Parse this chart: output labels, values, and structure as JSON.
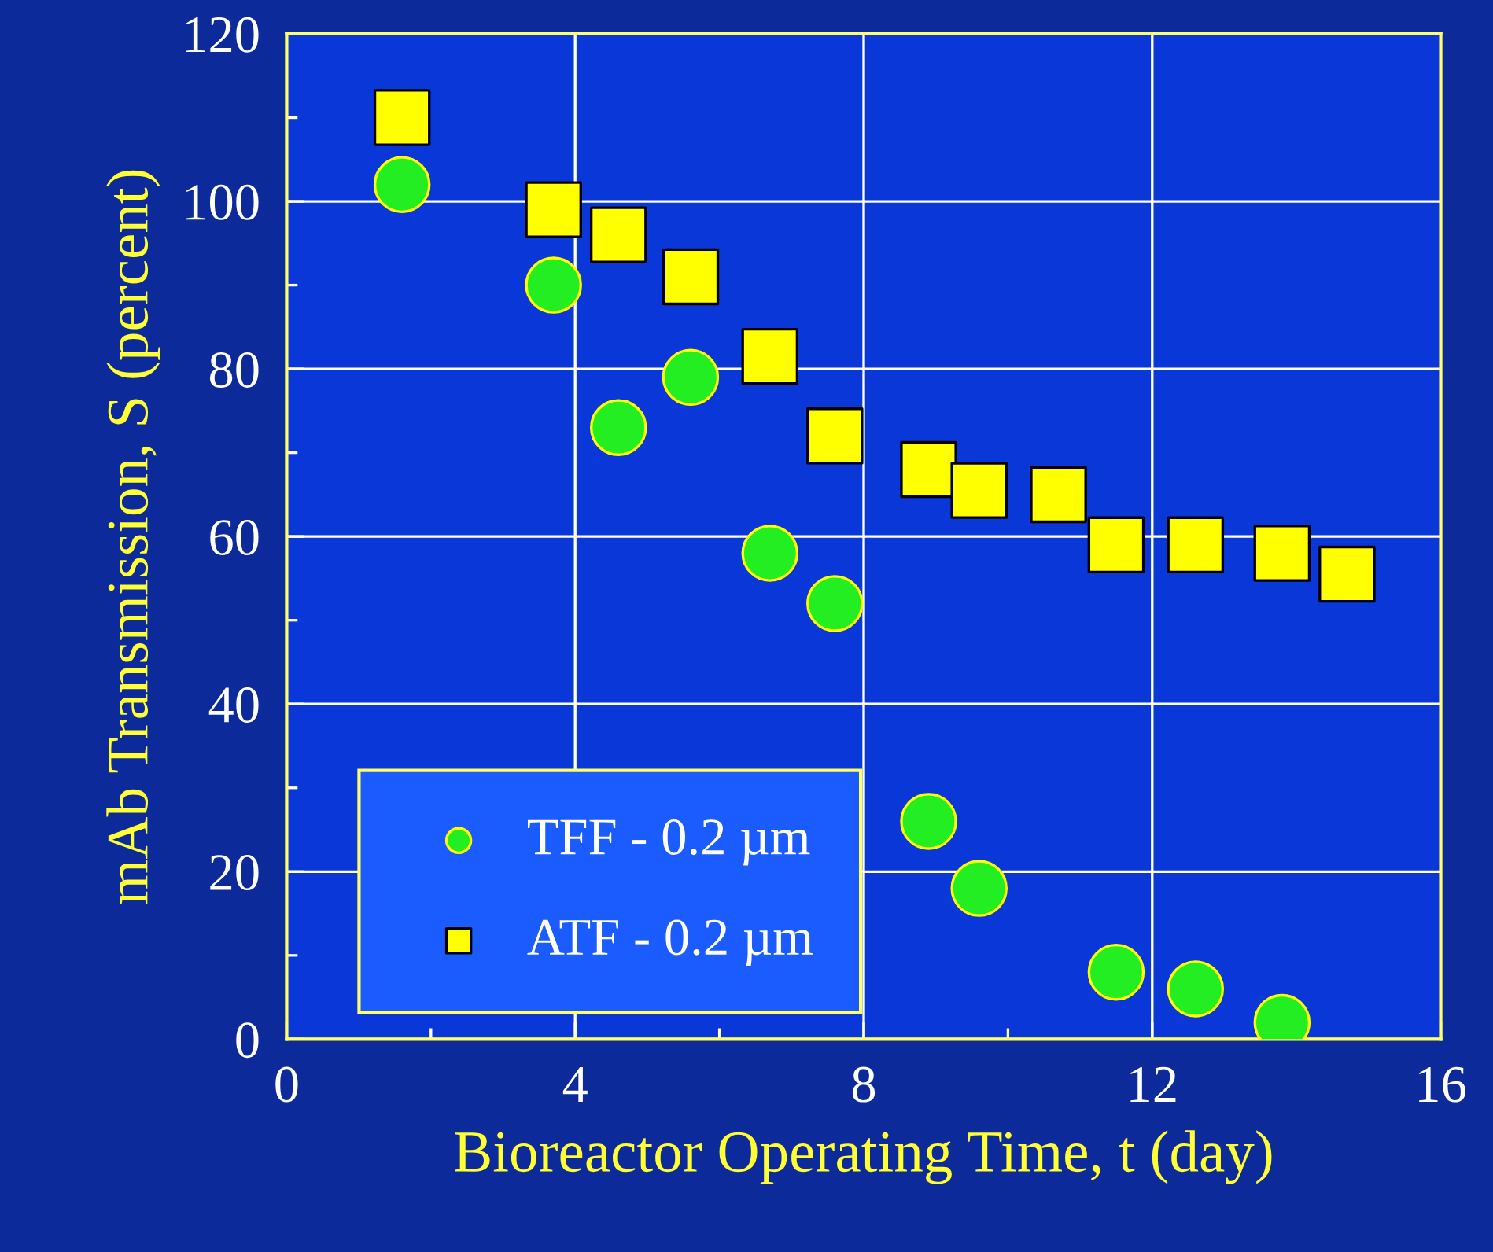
{
  "chart_data": {
    "type": "scatter",
    "xlabel": "Bioreactor Operating Time, t (day)",
    "ylabel": "mAb Transmission, S (percent)",
    "xlim": [
      0,
      16
    ],
    "ylim": [
      0,
      120
    ],
    "xticks": [
      0,
      4,
      8,
      12,
      16
    ],
    "yticks": [
      0,
      20,
      40,
      60,
      80,
      100,
      120
    ],
    "grid": true,
    "legend": "bottom left",
    "series": [
      {
        "name": "TFF - 0.2 µm",
        "color": "#22ee22",
        "marker": "circle",
        "x": [
          1.6,
          3.7,
          4.6,
          5.6,
          6.7,
          7.6,
          8.9,
          9.6,
          11.5,
          12.6,
          13.8
        ],
        "values": [
          102,
          90,
          73,
          79,
          58,
          52,
          26,
          18,
          8,
          6,
          2
        ]
      },
      {
        "name": "ATF - 0.2 µm",
        "color": "#ffff00",
        "marker": "square",
        "x": [
          1.6,
          3.7,
          4.6,
          5.6,
          6.7,
          7.6,
          8.9,
          9.6,
          10.7,
          11.5,
          12.6,
          13.8,
          14.7
        ],
        "values": [
          110,
          99,
          96,
          91,
          81.5,
          72,
          68,
          65.5,
          65,
          59,
          59,
          58,
          55.5
        ]
      }
    ]
  }
}
